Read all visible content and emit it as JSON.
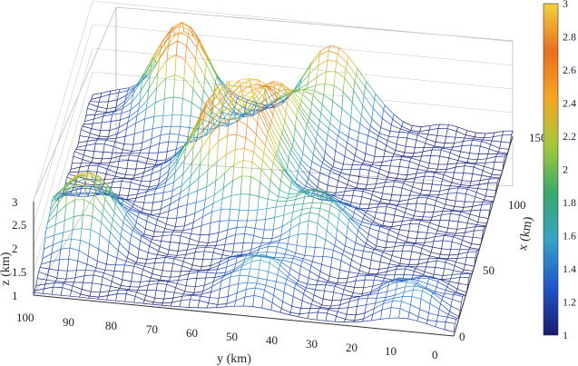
{
  "chart_data": {
    "type": "surface",
    "title": "",
    "xlabel": "x (km)",
    "ylabel": "y (km)",
    "zlabel": "z (km)",
    "x_ticks": [
      "0",
      "50",
      "100",
      "150"
    ],
    "y_ticks": [
      "100",
      "90",
      "80",
      "70",
      "60",
      "50",
      "40",
      "30",
      "20",
      "10",
      "0"
    ],
    "z_ticks": [
      "1",
      "1.5",
      "2",
      "2.5",
      "3"
    ],
    "xlim": [
      0,
      150
    ],
    "ylim": [
      0,
      100
    ],
    "zlim": [
      1,
      3
    ],
    "colorbar": {
      "colormap": [
        "#1a1a6e",
        "#1f55c8",
        "#36a3c8",
        "#3aa86a",
        "#a3c93a",
        "#f5a623",
        "#e86f1f",
        "#f2d23c"
      ],
      "ticks": [
        "1",
        "1.2",
        "1.4",
        "1.6",
        "1.8",
        "2",
        "2.2",
        "2.4",
        "2.6",
        "2.8",
        "3"
      ],
      "range": [
        1,
        3
      ]
    },
    "peaks": [
      {
        "x": 140,
        "y": 78,
        "z": 3.0
      },
      {
        "x": 150,
        "y": 42,
        "z": 2.55
      },
      {
        "x": 90,
        "y": 65,
        "z": 2.5
      },
      {
        "x": 100,
        "y": 58,
        "z": 2.3
      },
      {
        "x": 120,
        "y": 52,
        "z": 2.2
      },
      {
        "x": 75,
        "y": 55,
        "z": 2.2
      },
      {
        "x": 60,
        "y": 38,
        "z": 1.9
      },
      {
        "x": 45,
        "y": 92,
        "z": 2.4
      },
      {
        "x": 20,
        "y": 48,
        "z": 1.6
      },
      {
        "x": 15,
        "y": 12,
        "z": 1.5
      }
    ],
    "grid": true
  }
}
